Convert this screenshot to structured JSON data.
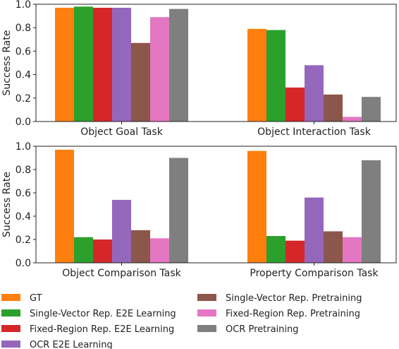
{
  "chart_data": {
    "type": "bar",
    "ylabel": "Success Rate",
    "ylim": [
      0,
      1.0
    ],
    "yticks": [
      "0.0",
      "0.2",
      "0.4",
      "0.6",
      "0.8",
      "1.0"
    ],
    "grid": false,
    "legend_placement": "bottom",
    "series": [
      {
        "name": "GT",
        "color": "#ff7f0e"
      },
      {
        "name": "Single-Vector Rep. E2E Learning",
        "color": "#2ca02c"
      },
      {
        "name": "Fixed-Region Rep. E2E Learning",
        "color": "#d62728"
      },
      {
        "name": "OCR E2E Learning",
        "color": "#9467bd"
      },
      {
        "name": "Single-Vector Rep. Pretraining",
        "color": "#8c564b"
      },
      {
        "name": "Fixed-Region Rep. Pretraining",
        "color": "#e377c2"
      },
      {
        "name": "OCR Pretraining",
        "color": "#7f7f7f"
      }
    ],
    "panels": [
      {
        "categories": [
          "Object Goal Task",
          "Object Interaction Task"
        ],
        "values": [
          [
            0.97,
            0.98,
            0.97,
            0.97,
            0.67,
            0.89,
            0.96
          ],
          [
            0.79,
            0.78,
            0.29,
            0.48,
            0.23,
            0.04,
            0.21
          ]
        ]
      },
      {
        "categories": [
          "Object Comparison Task",
          "Property Comparison Task"
        ],
        "values": [
          [
            0.97,
            0.22,
            0.2,
            0.54,
            0.28,
            0.21,
            0.9
          ],
          [
            0.96,
            0.23,
            0.19,
            0.56,
            0.27,
            0.22,
            0.88
          ]
        ]
      }
    ]
  }
}
